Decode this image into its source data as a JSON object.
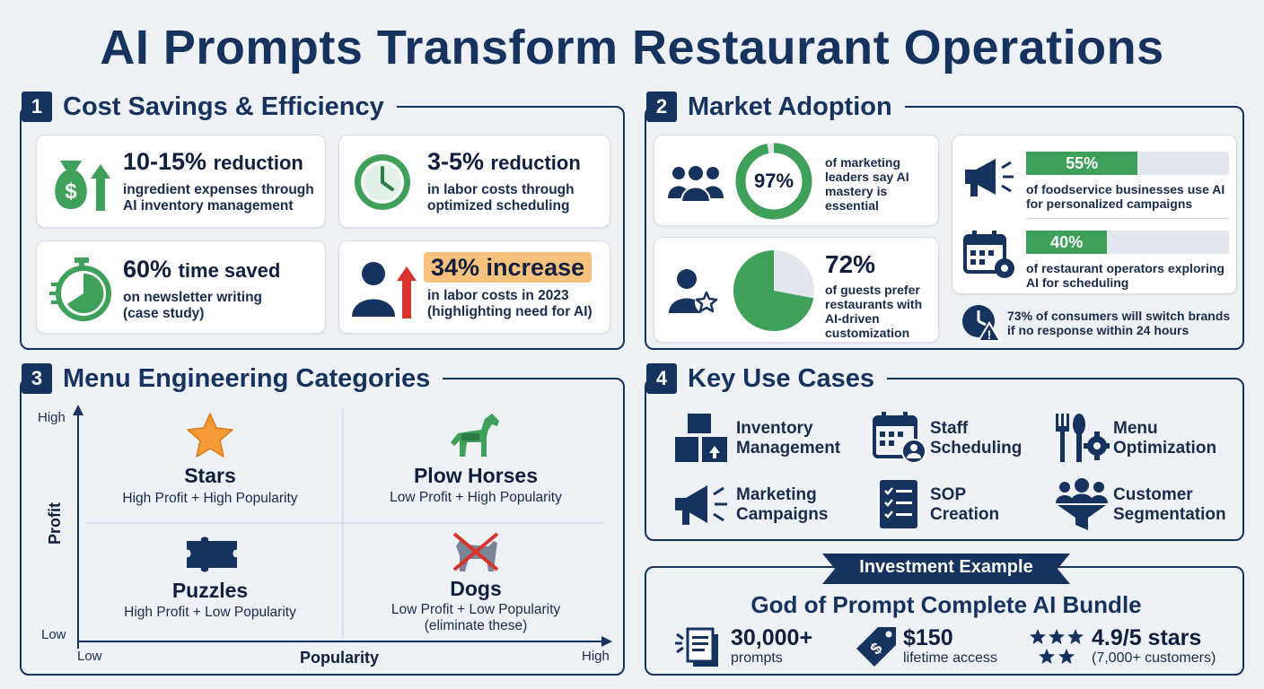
{
  "title": "AI Prompts Transform Restaurant Operations",
  "sections": {
    "s1": {
      "num": "1",
      "title": "Cost Savings & Efficiency"
    },
    "s2": {
      "num": "2",
      "title": "Market Adoption"
    },
    "s3": {
      "num": "3",
      "title": "Menu Engineering Categories"
    },
    "s4": {
      "num": "4",
      "title": "Key Use Cases"
    }
  },
  "cost": [
    {
      "big": "10-15%",
      "unit": "reduction",
      "line1": "ingredient expenses through",
      "line2": "AI inventory management",
      "icon": "money-bag-up-icon"
    },
    {
      "big": "3-5%",
      "unit": "reduction",
      "line1": "in labor costs through",
      "line2": "optimized scheduling",
      "icon": "clock-icon"
    },
    {
      "big": "60%",
      "unit": "time saved",
      "line1": "on newsletter writing",
      "line2": "(case study)",
      "icon": "stopwatch-icon"
    },
    {
      "big": "34% increase",
      "unit": "",
      "line1": "in labor costs in 2023",
      "line2": "(highlighting need for AI)",
      "icon": "person-up-icon"
    }
  ],
  "adoption": {
    "donut1": {
      "value": 97,
      "label": "97%",
      "l1": "of marketing",
      "l2": "leaders say AI",
      "l3": "mastery is",
      "l4": "essential"
    },
    "pie1": {
      "value": 72,
      "label": "72%",
      "l1": "of guests prefer",
      "l2": "restaurants with",
      "l3": "AI-driven",
      "l4": "customization"
    },
    "bar1": {
      "value": 55,
      "label": "55%",
      "l1": "of foodservice businesses use AI",
      "l2": "for personalized campaigns"
    },
    "bar2": {
      "value": 40,
      "label": "40%",
      "l1": "of restaurant operators exploring",
      "l2": "AI for scheduling"
    },
    "alert": {
      "l1": "73% of consumers will switch brands",
      "l2": "if no response within 24 hours"
    }
  },
  "menu": {
    "y_high": "High",
    "y_low": "Low",
    "y_label": "Profit",
    "x_low": "Low",
    "x_high": "High",
    "x_label": "Popularity",
    "stars": {
      "title": "Stars",
      "sub": "High Profit + High Popularity"
    },
    "plow": {
      "title": "Plow Horses",
      "sub": "Low Profit + High Popularity"
    },
    "puzzles": {
      "title": "Puzzles",
      "sub": "High Profit + Low Popularity"
    },
    "dogs": {
      "title": "Dogs",
      "sub": "Low Profit + Low Popularity",
      "sub2": "(eliminate these)"
    }
  },
  "use_cases": [
    {
      "l1": "Inventory",
      "l2": "Management",
      "icon": "boxes-icon"
    },
    {
      "l1": "Staff",
      "l2": "Scheduling",
      "icon": "calendar-person-icon"
    },
    {
      "l1": "Menu",
      "l2": "Optimization",
      "icon": "utensils-gear-icon"
    },
    {
      "l1": "Marketing",
      "l2": "Campaigns",
      "icon": "megaphone-icon"
    },
    {
      "l1": "SOP",
      "l2": "Creation",
      "icon": "checklist-icon"
    },
    {
      "l1": "Customer",
      "l2": "Segmentation",
      "icon": "people-funnel-icon"
    }
  ],
  "investment": {
    "banner": "Investment Example",
    "title": "God of Prompt Complete AI Bundle",
    "p1_big": "30,000+",
    "p1_sub": "prompts",
    "p2_big": "$150",
    "p2_sub": "lifetime access",
    "p3_big": "4.9/5 stars",
    "p3_sub": "(7,000+ customers)"
  },
  "colors": {
    "navy": "#16325e",
    "green": "#3fa05a",
    "orange": "#f59a36",
    "red": "#d9342b",
    "highlight": "#f8c27e"
  }
}
